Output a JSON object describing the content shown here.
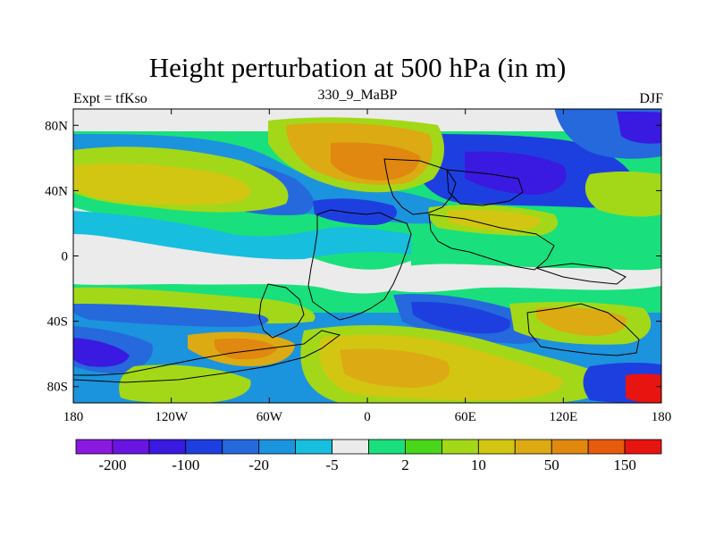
{
  "figure": {
    "title": "Height perturbation at 500 hPa (in m)",
    "left_string": "Expt = tfKso",
    "center_string": "330_9_MaBP",
    "right_string": "DJF"
  },
  "map": {
    "projection": "cylindrical-equidistant",
    "lon_range": [
      -180,
      180
    ],
    "lat_range": [
      -90,
      90
    ],
    "x_ticks": [
      {
        "lon": -180,
        "label": "180"
      },
      {
        "lon": -120,
        "label": "120W"
      },
      {
        "lon": -60,
        "label": "60W"
      },
      {
        "lon": 0,
        "label": "0"
      },
      {
        "lon": 60,
        "label": "60E"
      },
      {
        "lon": 120,
        "label": "120E"
      },
      {
        "lon": 180,
        "label": "180"
      }
    ],
    "y_ticks": [
      {
        "lat": 80,
        "label": "80N"
      },
      {
        "lat": 40,
        "label": "40N"
      },
      {
        "lat": 0,
        "label": "0"
      },
      {
        "lat": -40,
        "label": "40S"
      },
      {
        "lat": -80,
        "label": "80S"
      }
    ]
  },
  "colorbar": {
    "colors": [
      "#8a19e0",
      "#6a14e2",
      "#3a19e0",
      "#1e3fe0",
      "#2569dd",
      "#1c93dd",
      "#18bede",
      "#ebebeb",
      "#19e07c",
      "#49d618",
      "#a3d818",
      "#d2c612",
      "#dcaa12",
      "#e08810",
      "#e85a0c",
      "#e81410"
    ],
    "labels": [
      {
        "boundary": 1,
        "text": "-200"
      },
      {
        "boundary": 3,
        "text": "-100"
      },
      {
        "boundary": 5,
        "text": "-20"
      },
      {
        "boundary": 7,
        "text": "-5"
      },
      {
        "boundary": 9,
        "text": "2"
      },
      {
        "boundary": 11,
        "text": "10"
      },
      {
        "boundary": 13,
        "text": "50"
      },
      {
        "boundary": 15,
        "text": "150"
      }
    ]
  }
}
